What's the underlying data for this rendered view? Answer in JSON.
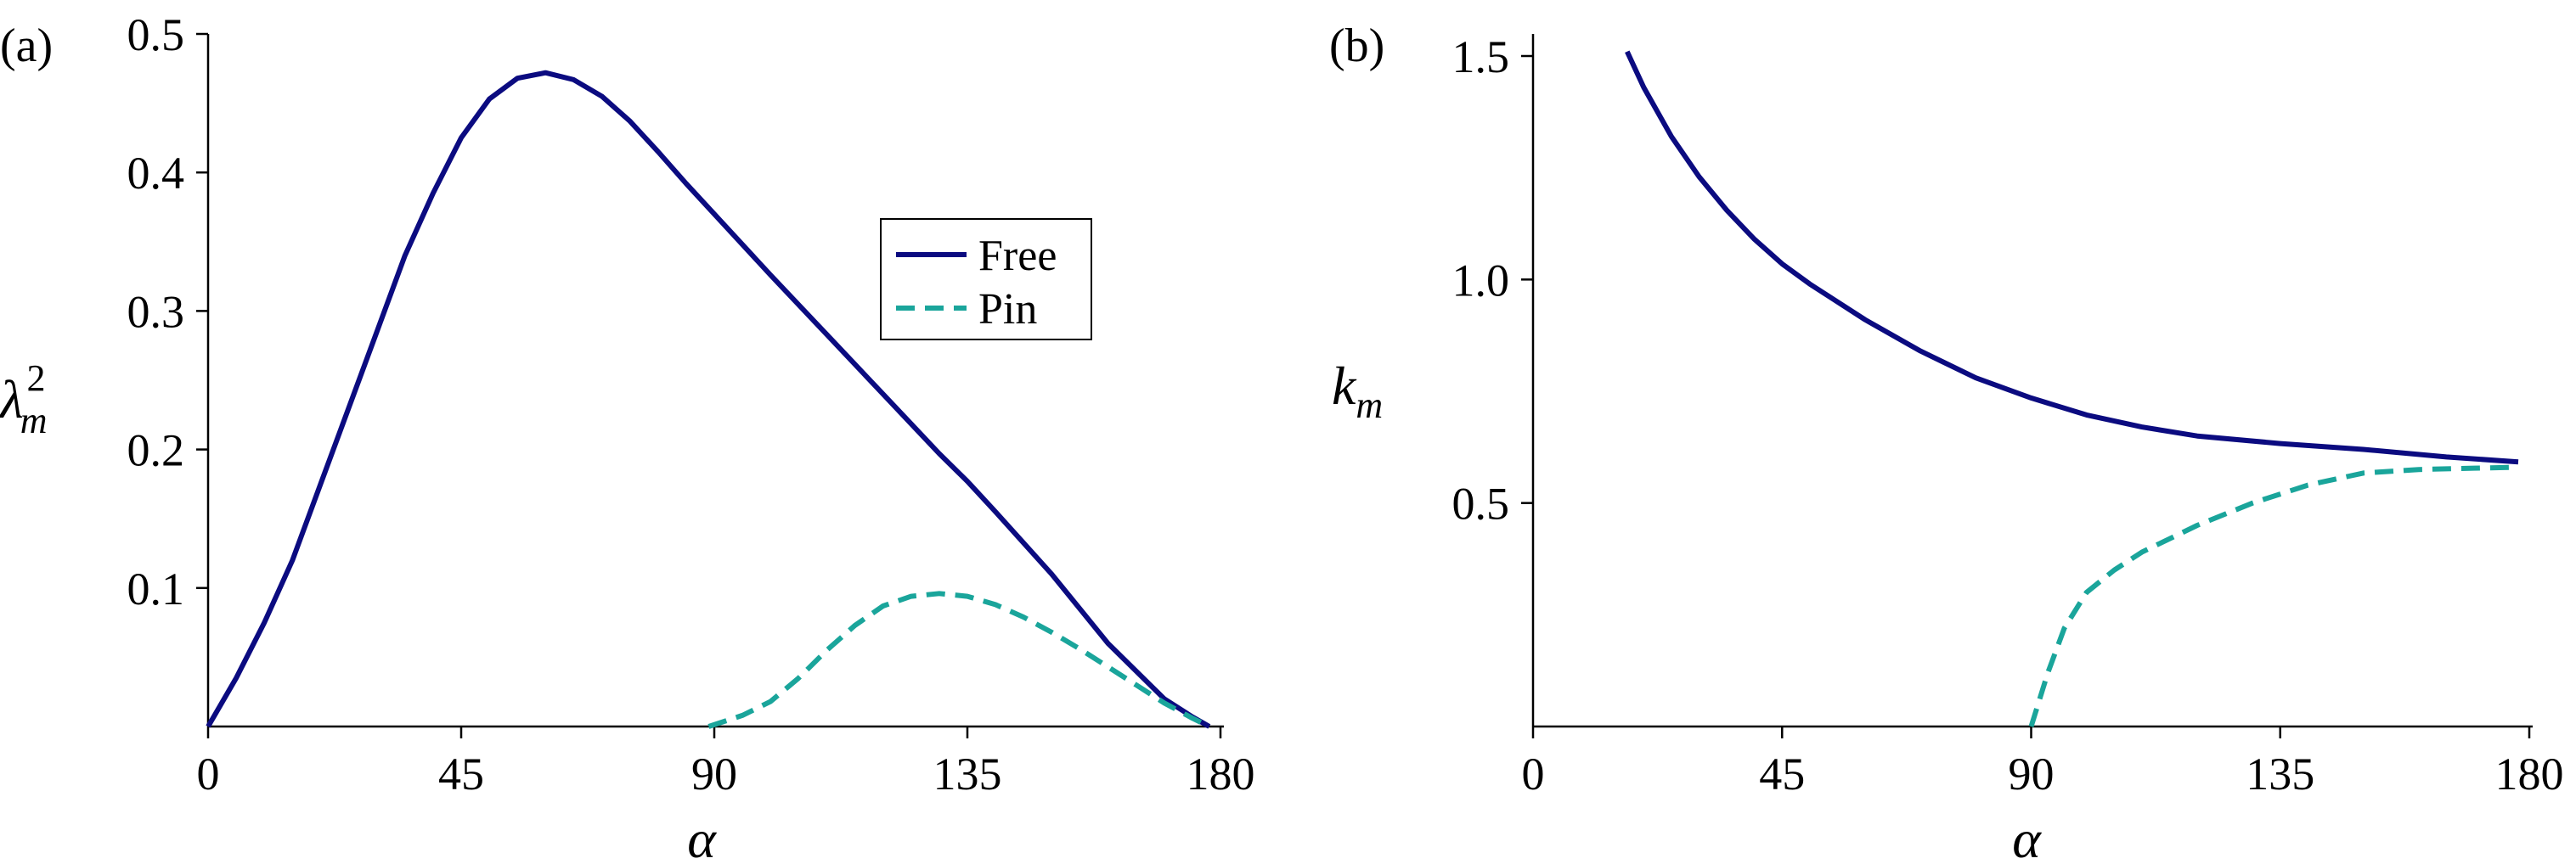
{
  "colors": {
    "free": "#0b0b80",
    "pin": "#1aa59b",
    "axis": "#000000"
  },
  "chart_data": [
    {
      "type": "line",
      "panel_label": "(a)",
      "xlabel": "α",
      "ylabel_base": "λ",
      "ylabel_sub": "m",
      "ylabel_sup": "2",
      "xlim": [
        0,
        180
      ],
      "ylim": [
        0,
        0.5
      ],
      "xticks": [
        0,
        45,
        90,
        135,
        180
      ],
      "yticks": [
        0.1,
        0.2,
        0.3,
        0.4,
        0.5
      ],
      "grid": false,
      "legend": {
        "position": "right",
        "entries": [
          "Free",
          "Pin"
        ]
      },
      "series": [
        {
          "name": "Free",
          "style": "solid",
          "x": [
            0,
            5,
            10,
            15,
            20,
            25,
            30,
            35,
            40,
            45,
            50,
            55,
            60,
            65,
            70,
            75,
            80,
            85,
            90,
            100,
            110,
            120,
            130,
            135,
            140,
            150,
            160,
            170,
            175,
            178
          ],
          "y": [
            0.0,
            0.035,
            0.075,
            0.12,
            0.175,
            0.23,
            0.285,
            0.34,
            0.385,
            0.425,
            0.453,
            0.468,
            0.472,
            0.467,
            0.455,
            0.437,
            0.415,
            0.392,
            0.37,
            0.326,
            0.283,
            0.24,
            0.197,
            0.177,
            0.155,
            0.11,
            0.06,
            0.02,
            0.007,
            0.0
          ]
        },
        {
          "name": "Pin",
          "style": "dashed",
          "x": [
            89,
            95,
            100,
            105,
            110,
            115,
            120,
            125,
            130,
            135,
            140,
            145,
            150,
            155,
            160,
            165,
            170,
            175,
            178
          ],
          "y": [
            0.0,
            0.008,
            0.018,
            0.035,
            0.055,
            0.073,
            0.087,
            0.094,
            0.096,
            0.094,
            0.088,
            0.079,
            0.068,
            0.056,
            0.043,
            0.03,
            0.017,
            0.006,
            0.0
          ]
        }
      ]
    },
    {
      "type": "line",
      "panel_label": "(b)",
      "xlabel": "α",
      "ylabel_base": "k",
      "ylabel_sub": "m",
      "xlim": [
        0,
        180
      ],
      "ylim": [
        0,
        1.5
      ],
      "xticks": [
        0,
        45,
        90,
        135,
        180
      ],
      "yticks": [
        0.5,
        1.0,
        1.5
      ],
      "ytick_labels": [
        "0.5",
        "1.0",
        "1.5"
      ],
      "grid": false,
      "series": [
        {
          "name": "Free",
          "style": "solid",
          "x": [
            17,
            20,
            25,
            30,
            35,
            40,
            45,
            50,
            60,
            70,
            80,
            90,
            100,
            110,
            120,
            135,
            150,
            165,
            178
          ],
          "y": [
            1.51,
            1.43,
            1.32,
            1.23,
            1.155,
            1.09,
            1.035,
            0.99,
            0.91,
            0.84,
            0.78,
            0.735,
            0.697,
            0.67,
            0.65,
            0.633,
            0.62,
            0.603,
            0.592
          ]
        },
        {
          "name": "Pin",
          "style": "dashed",
          "x": [
            90,
            93,
            96,
            100,
            105,
            110,
            120,
            130,
            140,
            150,
            160,
            170,
            178
          ],
          "y": [
            0.0,
            0.12,
            0.22,
            0.3,
            0.35,
            0.39,
            0.45,
            0.5,
            0.54,
            0.567,
            0.575,
            0.578,
            0.58
          ]
        }
      ]
    }
  ]
}
